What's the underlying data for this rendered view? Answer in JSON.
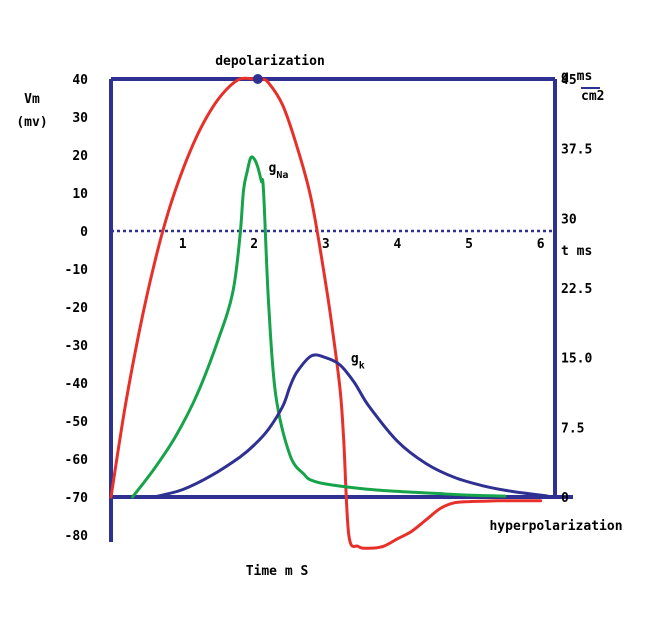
{
  "chart_data": {
    "type": "line",
    "title": "",
    "annotations": {
      "top": "depolarization",
      "bottom": "hyperpolarization"
    },
    "xlabel": "Time m S",
    "x_axis_label_right": "t ms",
    "x_ticks": [
      "1",
      "2",
      "3",
      "4",
      "5",
      "6"
    ],
    "xlim": [
      0,
      6.2
    ],
    "ylabel_left": [
      "Vm",
      "(mv)"
    ],
    "y_ticks_left": [
      "40",
      "30",
      "20",
      "10",
      "0",
      "-10",
      "-20",
      "-30",
      "-40",
      "-50",
      "-60",
      "-70",
      "-80"
    ],
    "ylim_left": [
      -80,
      40
    ],
    "ylabel_right": {
      "top": "g ms",
      "bottom": "cm2"
    },
    "y_ticks_right": [
      "45",
      "37.5",
      "30",
      "22.5",
      "15.0",
      "7.5",
      "0"
    ],
    "ylim_right": [
      0,
      45
    ],
    "zero_line": true,
    "colors": {
      "frame": "#2e3192",
      "membrane_potential": "#e8302a",
      "g_na": "#16a34a",
      "g_k": "#2e3192",
      "zero_line": "#2e3192"
    },
    "series": [
      {
        "name": "",
        "axis": "left",
        "color": "#e8302a",
        "x": [
          0.0,
          0.2,
          0.4,
          0.6,
          0.8,
          1.0,
          1.2,
          1.4,
          1.6,
          1.8,
          2.0,
          2.1,
          2.2,
          2.4,
          2.6,
          2.8,
          3.0,
          3.1,
          3.2,
          3.25,
          3.32,
          3.45,
          3.6,
          3.8,
          4.0,
          4.2,
          4.4,
          4.6,
          4.8,
          5.0,
          5.2,
          5.4,
          5.6,
          5.8,
          6.0
        ],
        "y": [
          -70,
          -46,
          -26,
          -9,
          5,
          16,
          25,
          32,
          37,
          40,
          40,
          40,
          39,
          33,
          22,
          8,
          -14,
          -27,
          -42,
          -55,
          -80,
          -83,
          -83.5,
          -83,
          -81,
          -79,
          -76,
          -73,
          -71.5,
          -71.2,
          -71.1,
          -71,
          -71,
          -71,
          -71
        ]
      },
      {
        "name": "gNa",
        "axis": "right",
        "color": "#16a34a",
        "x": [
          0.3,
          0.6,
          0.9,
          1.2,
          1.5,
          1.7,
          1.8,
          1.85,
          1.9,
          1.95,
          2.0,
          2.05,
          2.1,
          2.13,
          2.2,
          2.3,
          2.5,
          2.7,
          2.8,
          3.0,
          3.5,
          4.0,
          4.5,
          5.0,
          5.5
        ],
        "y": [
          0,
          3,
          6.5,
          11,
          17,
          22,
          28,
          33,
          35,
          36.5,
          36.4,
          35.5,
          34,
          33,
          21,
          11,
          4.5,
          2.4,
          1.8,
          1.4,
          0.9,
          0.6,
          0.4,
          0.2,
          0.1
        ]
      },
      {
        "name": "gk",
        "axis": "right",
        "color": "#2e3192",
        "x": [
          0.6,
          1.0,
          1.4,
          1.8,
          2.0,
          2.2,
          2.4,
          2.5,
          2.6,
          2.8,
          3.0,
          3.2,
          3.4,
          3.6,
          4.0,
          4.4,
          4.8,
          5.2,
          5.6,
          6.0,
          6.1
        ],
        "y": [
          0,
          0.8,
          2.3,
          4.3,
          5.6,
          7.3,
          9.8,
          11.9,
          13.5,
          15.2,
          15.0,
          14.2,
          12.3,
          9.8,
          6.0,
          3.6,
          2.1,
          1.2,
          0.6,
          0.2,
          0.1
        ]
      }
    ],
    "series_labels": [
      {
        "name": "gNa",
        "text": "g",
        "subscript": "Na",
        "x": 2.2,
        "y_right": 35
      },
      {
        "name": "gk",
        "text": "g",
        "subscript": "k",
        "x": 3.35,
        "y_right": 14.5
      }
    ]
  }
}
